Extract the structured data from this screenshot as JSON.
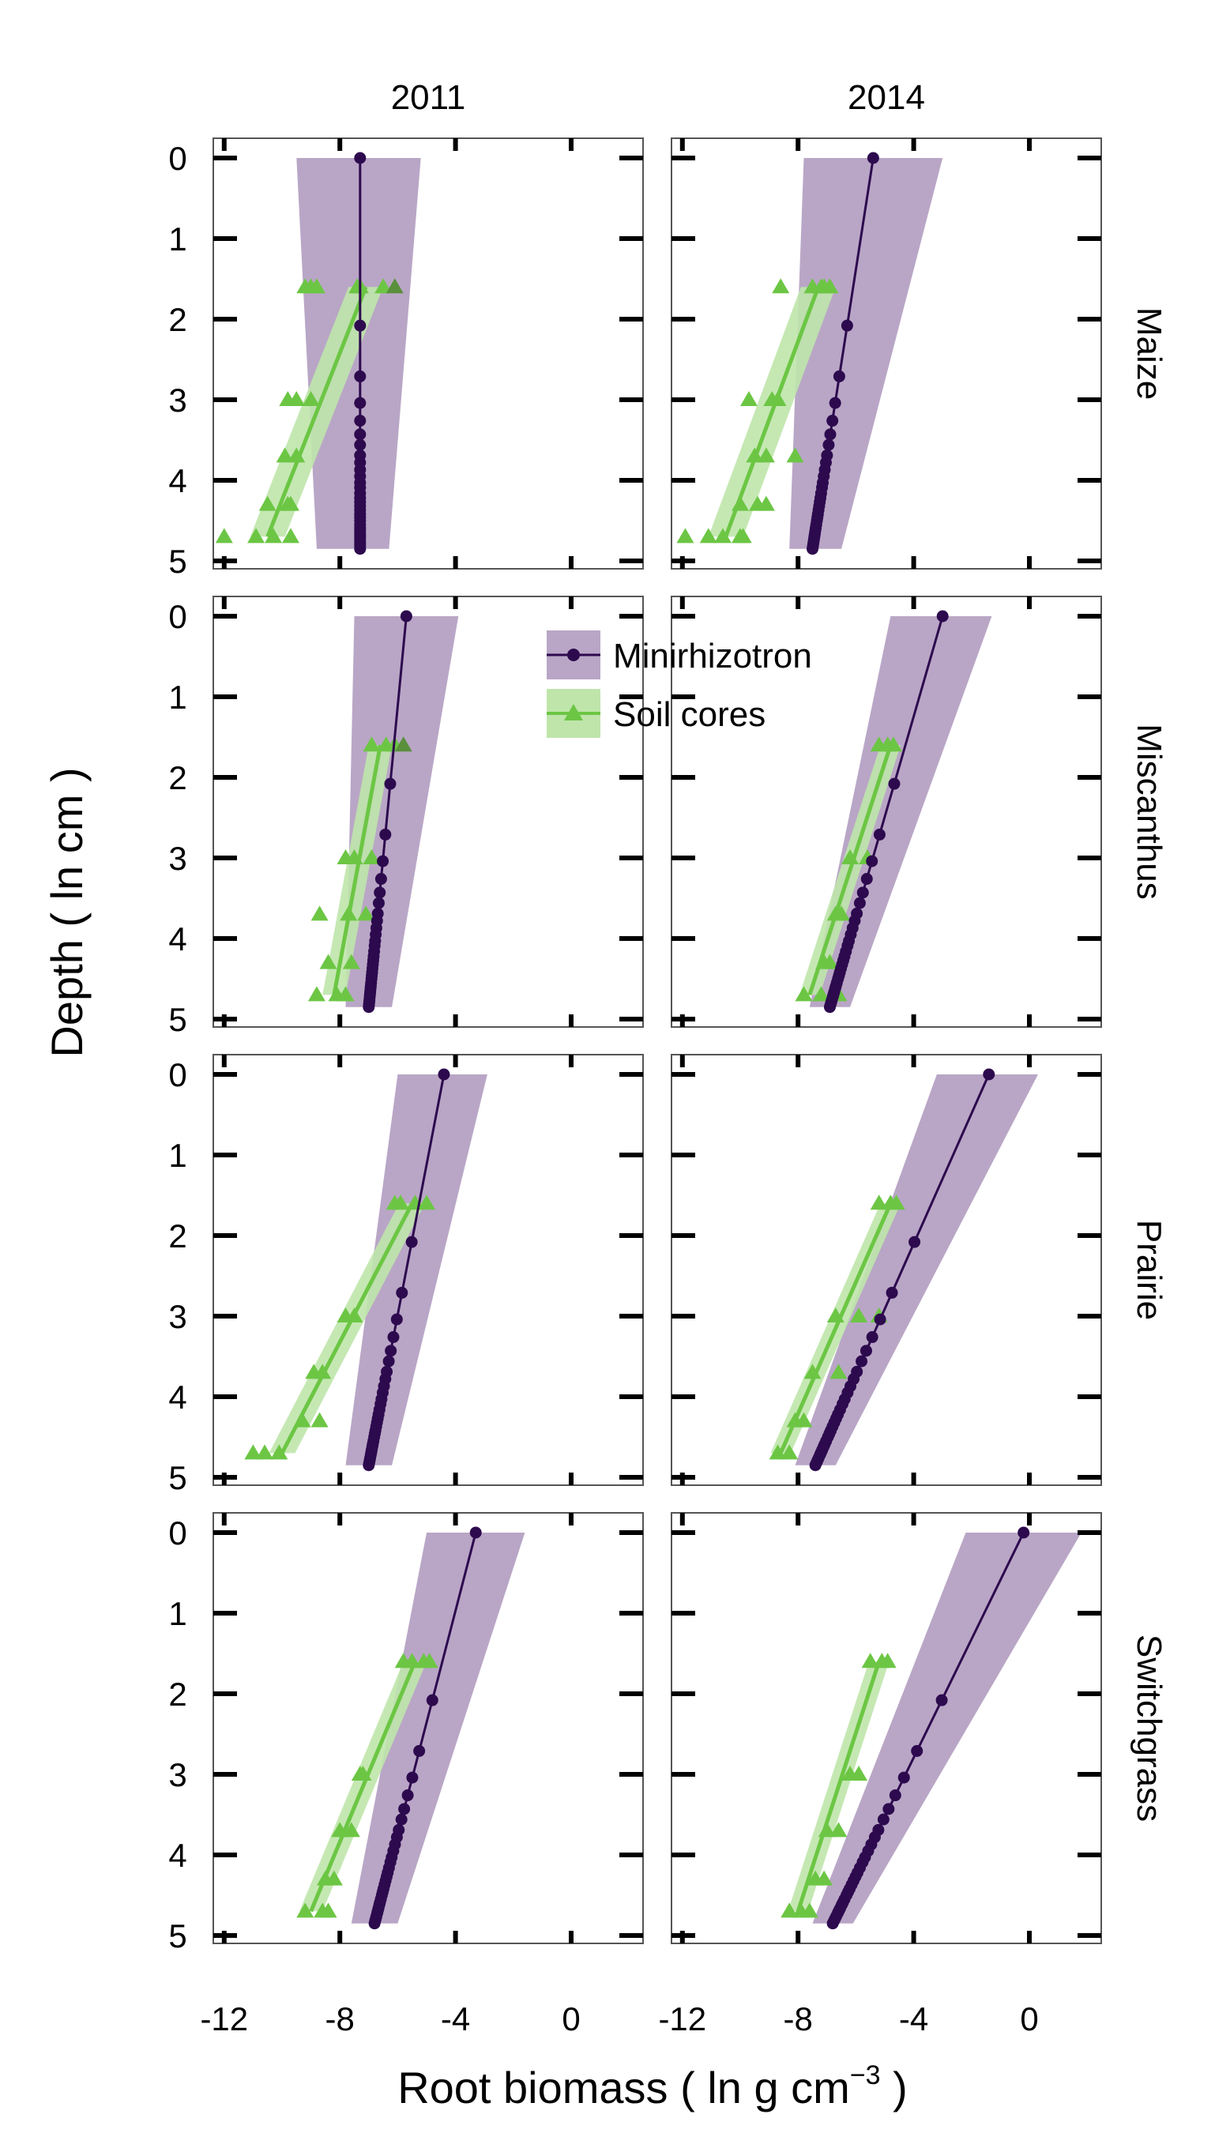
{
  "chart_data": {
    "type": "line",
    "xlabel_main": "Root biomass ( ln g cm",
    "xlabel_exponent": "−3",
    "xlabel_close": " )",
    "ylabel": "Depth ( ln cm )",
    "x_ticks": [
      -12,
      -8,
      -4,
      0
    ],
    "y_ticks": [
      0,
      1,
      2,
      3,
      4,
      5
    ],
    "xlim": [
      -14,
      5
    ],
    "ylim": [
      -0.25,
      5.1
    ],
    "y_reversed": true,
    "grid": false,
    "legend_position": "top-center",
    "years": [
      "2011",
      "2014"
    ],
    "crops": [
      "Maize",
      "Miscanthus",
      "Prairie",
      "Switchgrass"
    ],
    "legend": [
      {
        "key": "minirhizotron",
        "label": "Minirhizotron"
      },
      {
        "key": "soil",
        "label": "Soil cores"
      }
    ],
    "colors": {
      "minirhizotron_line": "#2d0a4e",
      "minirhizotron_band": "#b9a6c6",
      "soil_line": "#6cc644",
      "soil_band": "#bfe5ab",
      "soil_points_overlap": "#5a8f3c"
    },
    "mr_depths": [
      0,
      2.08,
      2.71,
      3.04,
      3.26,
      3.43,
      3.56,
      3.69,
      3.78,
      3.87,
      3.95,
      4.03,
      4.09,
      4.16,
      4.22,
      4.27,
      4.32,
      4.37,
      4.42,
      4.46,
      4.5,
      4.55,
      4.59,
      4.62,
      4.66,
      4.69,
      4.72,
      4.76,
      4.79,
      4.82,
      4.85
    ],
    "soil_fit_depths": [
      1.6,
      4.7
    ],
    "panels": [
      {
        "crop": "Maize",
        "year": "2011",
        "mr": {
          "top": -7.3,
          "bottom": -7.3,
          "band_top": [
            -9.5,
            -5.2
          ],
          "band_bottom": [
            -8.8,
            -6.3
          ]
        },
        "soil": {
          "fit_top": -7.1,
          "fit_bottom": -10.5,
          "band_halfwidth": 0.6,
          "points": [
            [
              1.6,
              -6.5
            ],
            [
              1.6,
              -7.3
            ],
            [
              1.6,
              -8.8
            ],
            [
              1.6,
              -9.2
            ],
            [
              1.6,
              -7.4
            ],
            [
              1.6,
              -9.0
            ],
            [
              1.6,
              -6.1
            ],
            [
              3.0,
              -9.0
            ],
            [
              3.0,
              -9.5
            ],
            [
              3.0,
              -9.8
            ],
            [
              3.7,
              -9.5
            ],
            [
              3.7,
              -9.9
            ],
            [
              4.3,
              -10.5
            ],
            [
              4.3,
              -9.8
            ],
            [
              4.7,
              -10.9
            ],
            [
              4.7,
              -10.3
            ],
            [
              4.7,
              -12.0
            ],
            [
              4.7,
              -9.7
            ],
            [
              4.3,
              -9.7
            ]
          ]
        }
      },
      {
        "crop": "Maize",
        "year": "2014",
        "mr": {
          "top": -5.4,
          "bottom": -7.5,
          "band_top": [
            -7.8,
            -3.0
          ],
          "band_bottom": [
            -8.3,
            -6.5
          ]
        },
        "soil": {
          "fit_top": -7.3,
          "fit_bottom": -10.5,
          "band_halfwidth": 0.6,
          "points": [
            [
              1.6,
              -8.6
            ],
            [
              1.6,
              -7.5
            ],
            [
              1.6,
              -7.2
            ],
            [
              1.6,
              -7.1
            ],
            [
              1.6,
              -6.9
            ],
            [
              3.0,
              -8.7
            ],
            [
              3.0,
              -8.9
            ],
            [
              3.0,
              -9.7
            ],
            [
              3.7,
              -9.5
            ],
            [
              3.7,
              -9.1
            ],
            [
              3.7,
              -8.1
            ],
            [
              4.3,
              -10.0
            ],
            [
              4.3,
              -9.4
            ],
            [
              4.3,
              -9.1
            ],
            [
              4.7,
              -11.9
            ],
            [
              4.7,
              -11.1
            ],
            [
              4.7,
              -10.6
            ],
            [
              4.7,
              -9.9
            ],
            [
              4.7,
              -10.0
            ]
          ]
        }
      },
      {
        "crop": "Miscanthus",
        "year": "2011",
        "mr": {
          "top": -5.7,
          "bottom": -7.0,
          "band_top": [
            -7.5,
            -3.9
          ],
          "band_bottom": [
            -7.8,
            -6.2
          ]
        },
        "soil": {
          "fit_top": -6.6,
          "fit_bottom": -8.2,
          "band_halfwidth": 0.4,
          "points": [
            [
              1.6,
              -6.9
            ],
            [
              1.6,
              -6.4
            ],
            [
              1.6,
              -6.1
            ],
            [
              1.6,
              -5.8
            ],
            [
              3.0,
              -7.5
            ],
            [
              3.0,
              -7.8
            ],
            [
              3.0,
              -6.9
            ],
            [
              3.7,
              -8.7
            ],
            [
              3.7,
              -7.7
            ],
            [
              3.7,
              -7.1
            ],
            [
              4.3,
              -8.4
            ],
            [
              4.3,
              -7.6
            ],
            [
              4.7,
              -8.8
            ],
            [
              4.7,
              -8.1
            ],
            [
              4.7,
              -7.8
            ]
          ]
        }
      },
      {
        "crop": "Miscanthus",
        "year": "2014",
        "mr": {
          "top": -3.0,
          "bottom": -6.9,
          "band_top": [
            -4.8,
            -1.3
          ],
          "band_bottom": [
            -7.6,
            -6.2
          ]
        },
        "soil": {
          "fit_top": -4.8,
          "fit_bottom": -7.6,
          "band_halfwidth": 0.35,
          "points": [
            [
              1.6,
              -5.2
            ],
            [
              1.6,
              -4.9
            ],
            [
              1.6,
              -4.7
            ],
            [
              3.0,
              -6.2
            ],
            [
              3.0,
              -5.6
            ],
            [
              3.7,
              -6.7
            ],
            [
              3.7,
              -6.5
            ],
            [
              4.3,
              -7.1
            ],
            [
              4.3,
              -6.9
            ],
            [
              4.7,
              -7.8
            ],
            [
              4.7,
              -7.2
            ],
            [
              4.7,
              -6.6
            ]
          ]
        }
      },
      {
        "crop": "Prairie",
        "year": "2011",
        "mr": {
          "top": -4.4,
          "bottom": -7.0,
          "band_top": [
            -6.0,
            -2.9
          ],
          "band_bottom": [
            -7.8,
            -6.2
          ]
        },
        "soil": {
          "fit_top": -5.5,
          "fit_bottom": -10.0,
          "band_halfwidth": 0.45,
          "points": [
            [
              1.6,
              -6.1
            ],
            [
              1.6,
              -5.9
            ],
            [
              1.6,
              -5.4
            ],
            [
              1.6,
              -5.0
            ],
            [
              3.0,
              -7.8
            ],
            [
              3.0,
              -7.5
            ],
            [
              3.7,
              -8.9
            ],
            [
              3.7,
              -8.6
            ],
            [
              4.3,
              -9.3
            ],
            [
              4.3,
              -8.7
            ],
            [
              4.7,
              -10.6
            ],
            [
              4.7,
              -10.1
            ],
            [
              4.7,
              -11.0
            ]
          ]
        }
      },
      {
        "crop": "Prairie",
        "year": "2014",
        "mr": {
          "top": -1.4,
          "bottom": -7.4,
          "band_top": [
            -3.2,
            0.3
          ],
          "band_bottom": [
            -8.1,
            -6.7
          ]
        },
        "soil": {
          "fit_top": -4.8,
          "fit_bottom": -8.6,
          "band_halfwidth": 0.35,
          "points": [
            [
              1.6,
              -5.2
            ],
            [
              1.6,
              -4.8
            ],
            [
              1.6,
              -4.6
            ],
            [
              3.0,
              -6.7
            ],
            [
              3.0,
              -5.9
            ],
            [
              3.0,
              -5.2
            ],
            [
              3.7,
              -7.5
            ],
            [
              3.7,
              -6.6
            ],
            [
              4.3,
              -8.1
            ],
            [
              4.3,
              -7.8
            ],
            [
              4.7,
              -8.7
            ],
            [
              4.7,
              -8.3
            ]
          ]
        }
      },
      {
        "crop": "Switchgrass",
        "year": "2011",
        "mr": {
          "top": -3.3,
          "bottom": -6.8,
          "band_top": [
            -5.0,
            -1.6
          ],
          "band_bottom": [
            -7.6,
            -6.0
          ]
        },
        "soil": {
          "fit_top": -5.4,
          "fit_bottom": -9.0,
          "band_halfwidth": 0.4,
          "points": [
            [
              1.6,
              -5.8
            ],
            [
              1.6,
              -5.5
            ],
            [
              1.6,
              -5.1
            ],
            [
              1.6,
              -4.9
            ],
            [
              3.0,
              -7.2
            ],
            [
              3.0,
              -7.3
            ],
            [
              3.7,
              -8.0
            ],
            [
              3.7,
              -7.6
            ],
            [
              4.3,
              -8.2
            ],
            [
              4.3,
              -8.5
            ],
            [
              4.7,
              -9.2
            ],
            [
              4.7,
              -8.6
            ],
            [
              4.7,
              -8.4
            ]
          ]
        }
      },
      {
        "crop": "Switchgrass",
        "year": "2014",
        "mr": {
          "top": -0.2,
          "bottom": -6.8,
          "band_top": [
            -2.2,
            1.8
          ],
          "band_bottom": [
            -7.5,
            -6.1
          ]
        },
        "soil": {
          "fit_top": -5.2,
          "fit_bottom": -8.0,
          "band_halfwidth": 0.35,
          "points": [
            [
              1.6,
              -5.5
            ],
            [
              1.6,
              -5.1
            ],
            [
              1.6,
              -4.9
            ],
            [
              3.0,
              -6.2
            ],
            [
              3.0,
              -5.9
            ],
            [
              3.7,
              -7.0
            ],
            [
              3.7,
              -6.6
            ],
            [
              4.3,
              -7.4
            ],
            [
              4.3,
              -7.1
            ],
            [
              4.7,
              -8.3
            ],
            [
              4.7,
              -7.9
            ],
            [
              4.7,
              -7.6
            ]
          ]
        }
      }
    ]
  }
}
